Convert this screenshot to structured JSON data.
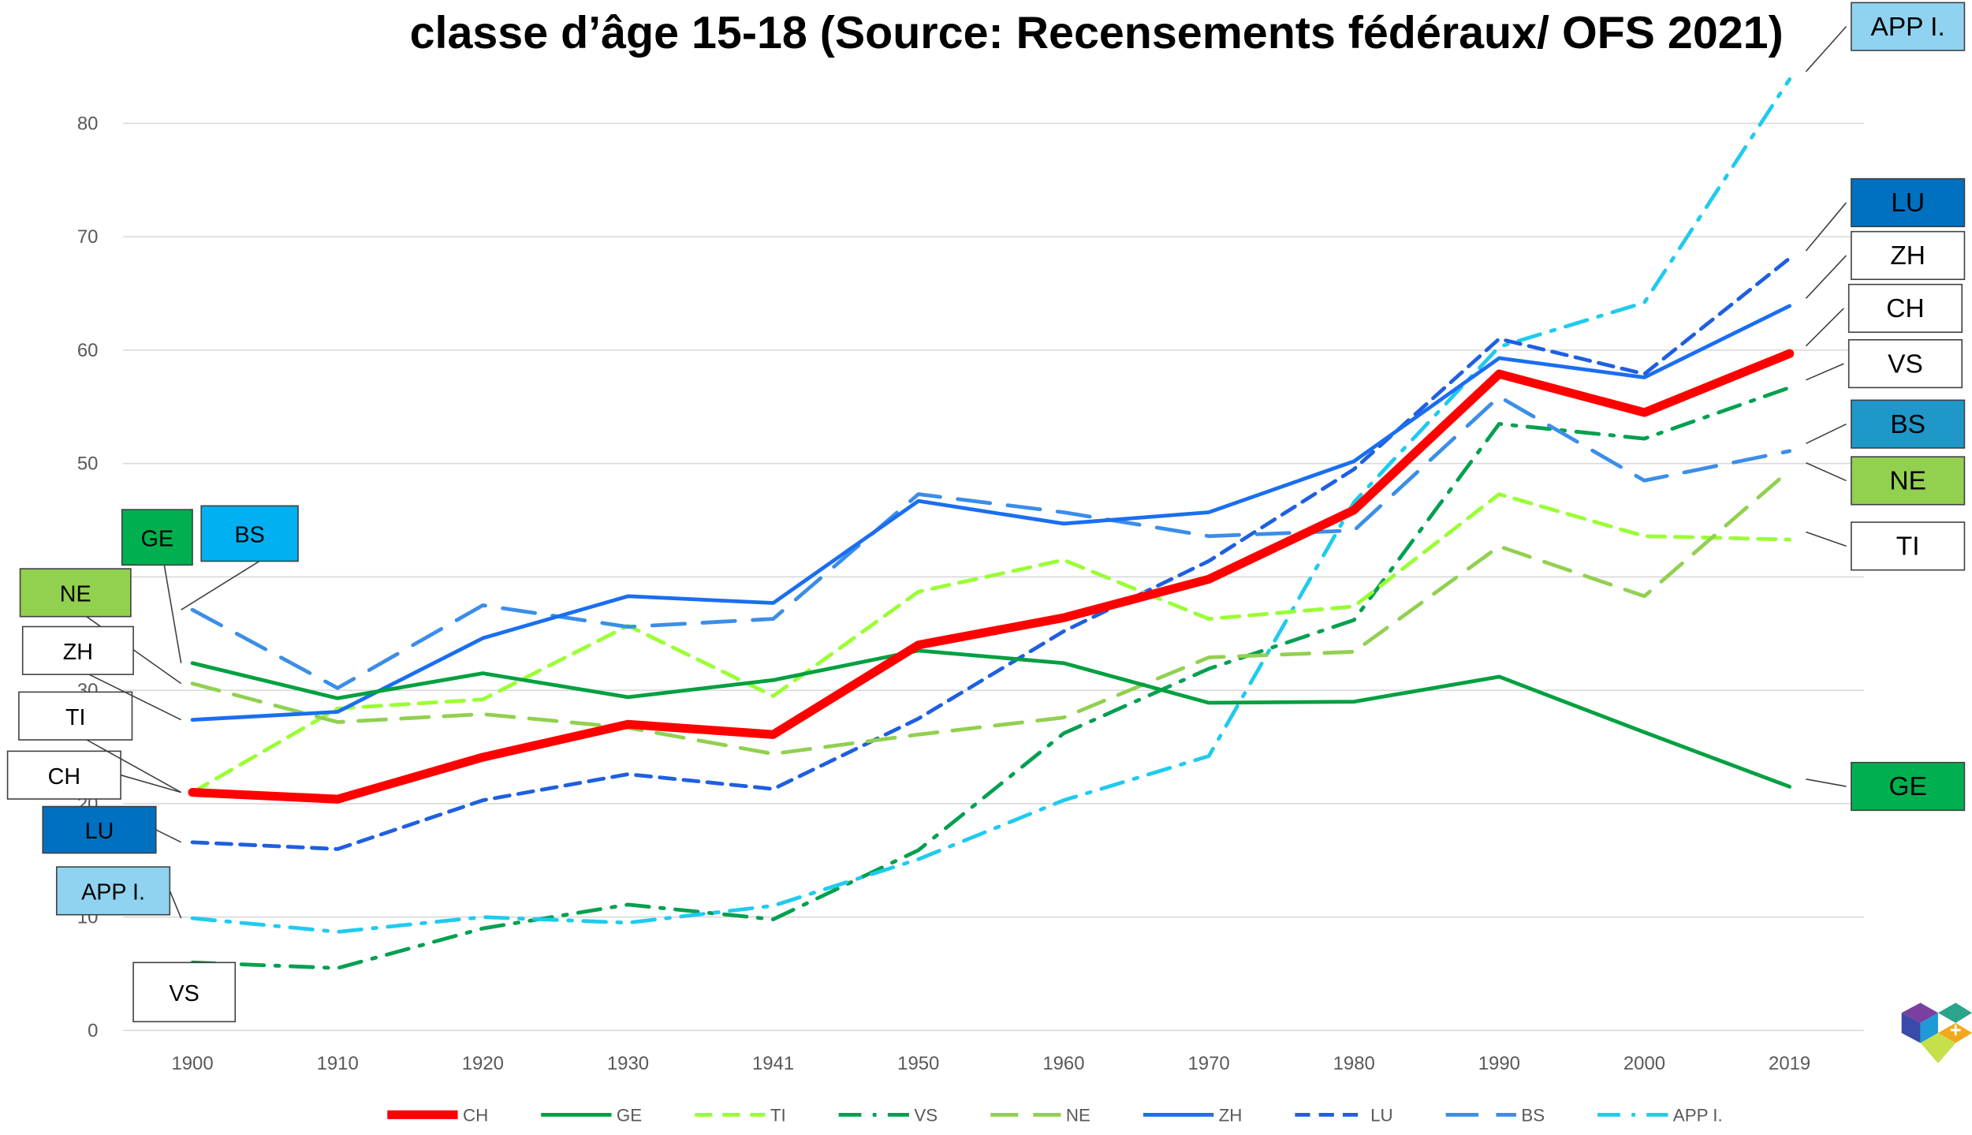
{
  "chart_data": {
    "type": "line",
    "title": "classe d’âge 15-18 (Source: Recensements fédéraux/ OFS 2021)",
    "categories": [
      "1900",
      "1910",
      "1920",
      "1930",
      "1941",
      "1950",
      "1960",
      "1970",
      "1980",
      "1990",
      "2000",
      "2019"
    ],
    "ylim": [
      0,
      80
    ],
    "yticks": [
      0,
      10,
      20,
      30,
      40,
      50,
      60,
      70,
      80
    ],
    "grid": true,
    "legend": "bottom",
    "series": [
      {
        "name": "CH",
        "color": "#ff0000",
        "values": [
          21.0,
          20.4,
          24.1,
          27.0,
          26.1,
          34.0,
          36.4,
          39.8,
          45.9,
          57.9,
          54.5,
          59.7
        ]
      },
      {
        "name": "GE",
        "color": "#00a040",
        "values": [
          32.4,
          29.3,
          31.5,
          29.4,
          30.9,
          33.5,
          32.4,
          28.9,
          29.0,
          31.2,
          26.3,
          21.5
        ]
      },
      {
        "name": "TI",
        "color": "#99ff33",
        "values": [
          21.0,
          28.4,
          29.2,
          35.7,
          29.5,
          38.7,
          41.5,
          36.3,
          37.4,
          47.3,
          43.6,
          43.3
        ]
      },
      {
        "name": "VS",
        "color": "#00a050",
        "values": [
          6.0,
          5.5,
          9.0,
          11.1,
          9.8,
          15.9,
          26.2,
          31.9,
          36.2,
          53.5,
          52.2,
          56.7
        ]
      },
      {
        "name": "NE",
        "color": "#92d050",
        "values": [
          30.6,
          27.2,
          27.9,
          26.7,
          24.4,
          26.1,
          27.6,
          32.9,
          33.4,
          42.7,
          38.3,
          49.4
        ]
      },
      {
        "name": "ZH",
        "color": "#1a6ef0",
        "values": [
          27.4,
          28.1,
          34.6,
          38.3,
          37.7,
          46.7,
          44.7,
          45.7,
          50.2,
          59.3,
          57.6,
          63.9
        ]
      },
      {
        "name": "LU",
        "color": "#1f5fe0",
        "values": [
          16.6,
          16.0,
          20.3,
          22.6,
          21.3,
          27.5,
          35.2,
          41.4,
          49.5,
          61.0,
          57.9,
          68.1
        ]
      },
      {
        "name": "BS",
        "color": "#3b8ee8",
        "values": [
          37.1,
          30.2,
          37.5,
          35.6,
          36.3,
          47.3,
          45.7,
          43.6,
          44.1,
          55.9,
          48.5,
          51.1
        ]
      },
      {
        "name": "APP I.",
        "color": "#1ecbee",
        "values": [
          9.9,
          8.7,
          10.0,
          9.5,
          11.0,
          15.1,
          20.3,
          24.2,
          46.6,
          60.3,
          64.2,
          83.9
        ]
      }
    ]
  }
}
